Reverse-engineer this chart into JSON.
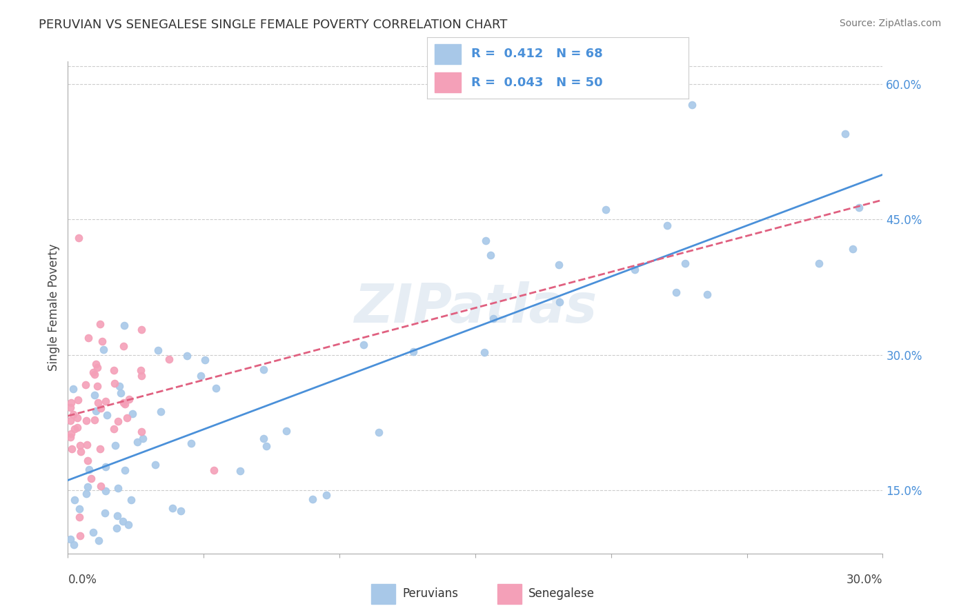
{
  "title": "PERUVIAN VS SENEGALESE SINGLE FEMALE POVERTY CORRELATION CHART",
  "source": "Source: ZipAtlas.com",
  "ylabel": "Single Female Poverty",
  "xlim": [
    0.0,
    0.3
  ],
  "ylim": [
    0.08,
    0.625
  ],
  "right_yticks": [
    0.15,
    0.3,
    0.45,
    0.6
  ],
  "right_ytick_labels": [
    "15.0%",
    "30.0%",
    "45.0%",
    "60.0%"
  ],
  "color_peruvian": "#a8c8e8",
  "color_senegalese": "#f4a0b8",
  "color_line_peruvian": "#4a90d9",
  "color_line_senegalese": "#e06080",
  "color_text_blue": "#4a90d9",
  "color_text_dark": "#333333",
  "background_color": "#ffffff",
  "watermark": "ZIPatlas"
}
